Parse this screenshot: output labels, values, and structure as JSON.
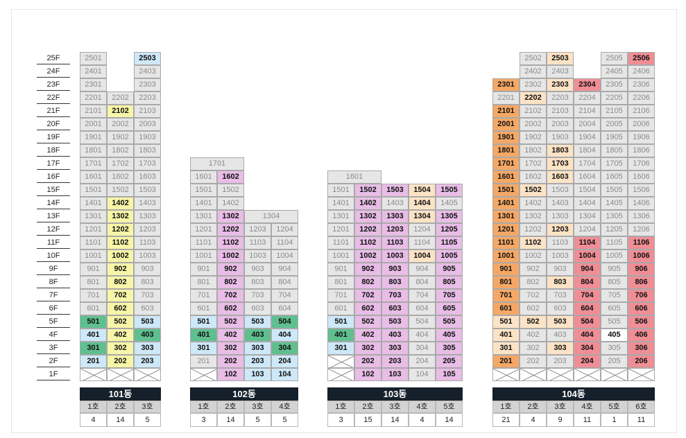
{
  "floors": [
    "25F",
    "24F",
    "23F",
    "22F",
    "21F",
    "20F",
    "19F",
    "18F",
    "17F",
    "16F",
    "15F",
    "14F",
    "13F",
    "12F",
    "11F",
    "10F",
    "9F",
    "8F",
    "7F",
    "6F",
    "5F",
    "4F",
    "3F",
    "2F",
    "1F"
  ],
  "colors": {
    "empty": "#e6e6e6",
    "yellow": "#f7f5a8",
    "blue": "#cde8f8",
    "green": "#5fbf8f",
    "pink": "#e8bde6",
    "peach": "#fde3c6",
    "orange": "#f5a866",
    "red": "#f08e96",
    "white": "#ffffff"
  },
  "buildings": [
    {
      "name": "101동",
      "hos": [
        "1호",
        "2호",
        "3호"
      ],
      "counts": [
        "4",
        "14",
        "5"
      ],
      "cols": [
        {
          "top": 25,
          "hl": {
            "2": "blue",
            "3": "green",
            "4": "blue",
            "5": "green"
          }
        },
        {
          "top": 22,
          "hl": {
            "2": "yellow",
            "3": "yellow",
            "4": "yellow",
            "5": "yellow",
            "6": "yellow",
            "7": "yellow",
            "8": "yellow",
            "9": "yellow",
            "10": "yellow",
            "11": "yellow",
            "12": "yellow",
            "13": "yellow",
            "14": "yellow",
            "21": "yellow"
          }
        },
        {
          "top": 25,
          "hl": {
            "2": "blue",
            "3": "blue",
            "4": "green",
            "5": "blue",
            "25": "blue"
          }
        }
      ]
    },
    {
      "name": "102동",
      "hos": [
        "1호",
        "2호",
        "3호",
        "4호"
      ],
      "counts": [
        "3",
        "14",
        "5",
        "5"
      ],
      "cols": [
        {
          "top": 16,
          "blank1": true,
          "hl": {
            "3": "blue",
            "4": "green",
            "5": "blue"
          }
        },
        {
          "top": 16,
          "hl": {
            "1": "pink",
            "2": "pink",
            "3": "pink",
            "4": "pink",
            "5": "pink",
            "6": "pink",
            "7": "pink",
            "8": "pink",
            "9": "pink",
            "10": "pink",
            "11": "pink",
            "12": "pink",
            "13": "pink",
            "16": "pink"
          }
        },
        {
          "top": 12,
          "hl": {
            "1": "blue",
            "2": "blue",
            "3": "blue",
            "4": "green",
            "5": "blue"
          }
        },
        {
          "top": 12,
          "hl": {
            "1": "blue",
            "2": "blue",
            "3": "green",
            "4": "blue",
            "5": "green"
          }
        }
      ],
      "extra": [
        {
          "label": "1701",
          "floor": 17,
          "col": 0,
          "span": 2
        },
        {
          "label": "1304",
          "floor": 13,
          "col": 2,
          "span": 2
        }
      ]
    },
    {
      "name": "103동",
      "hos": [
        "1호",
        "2호",
        "3호",
        "4호",
        "5호"
      ],
      "counts": [
        "3",
        "15",
        "14",
        "4",
        "14"
      ],
      "cols": [
        {
          "top": 15,
          "blank1": true,
          "blank2": true,
          "hl": {
            "3": "blue",
            "4": "green",
            "5": "blue"
          }
        },
        {
          "top": 15,
          "hl": {
            "1": "pink",
            "2": "pink",
            "3": "pink",
            "4": "pink",
            "5": "pink",
            "6": "pink",
            "7": "pink",
            "8": "pink",
            "9": "pink",
            "10": "pink",
            "11": "pink",
            "12": "pink",
            "13": "pink",
            "14": "pink",
            "15": "pink"
          }
        },
        {
          "top": 15,
          "hl": {
            "1": "pink",
            "2": "pink",
            "3": "pink",
            "4": "pink",
            "5": "pink",
            "6": "pink",
            "7": "pink",
            "8": "pink",
            "9": "pink",
            "10": "pink",
            "11": "pink",
            "12": "pink",
            "13": "pink",
            "15": "pink"
          }
        },
        {
          "top": 15,
          "hl": {
            "10": "peach",
            "13": "peach",
            "15": "peach",
            "14": "peach"
          }
        },
        {
          "top": 15,
          "hl": {
            "1": "pink",
            "2": "pink",
            "3": "pink",
            "4": "pink",
            "5": "pink",
            "6": "pink",
            "7": "pink",
            "8": "pink",
            "9": "pink",
            "10": "pink",
            "11": "pink",
            "12": "pink",
            "13": "pink",
            "15": "pink"
          }
        }
      ],
      "extra": [
        {
          "label": "1601",
          "floor": 16,
          "col": 0,
          "span": 2
        }
      ]
    },
    {
      "name": "104동",
      "hos": [
        "1호",
        "2호",
        "3호",
        "4호",
        "5호",
        "6호"
      ],
      "counts": [
        "21",
        "4",
        "9",
        "11",
        "1",
        "11"
      ],
      "cols": [
        {
          "top": 23,
          "blank1": true,
          "hl": {
            "2": "orange",
            "3": "peach",
            "4": "peach",
            "5": "peach",
            "6": "orange",
            "7": "orange",
            "8": "orange",
            "9": "orange",
            "10": "orange",
            "11": "orange",
            "12": "orange",
            "13": "orange",
            "14": "orange",
            "15": "orange",
            "16": "orange",
            "17": "orange",
            "18": "orange",
            "19": "orange",
            "20": "orange",
            "21": "orange",
            "23": "orange"
          }
        },
        {
          "top": 25,
          "blank1": true,
          "hl": {
            "5": "peach",
            "11": "peach",
            "15": "peach",
            "22": "peach"
          }
        },
        {
          "top": 25,
          "blank1": true,
          "hl": {
            "3": "peach",
            "5": "peach",
            "8": "peach",
            "12": "peach",
            "16": "peach",
            "17": "peach",
            "18": "peach",
            "23": "peach",
            "25": "peach"
          }
        },
        {
          "top": 23,
          "blank1": true,
          "hl": {
            "2": "red",
            "3": "red",
            "4": "red",
            "5": "red",
            "6": "red",
            "7": "red",
            "8": "red",
            "9": "red",
            "10": "red",
            "11": "red",
            "23": "red"
          }
        },
        {
          "top": 25,
          "blank1": true,
          "hl": {
            "4": "white"
          }
        },
        {
          "top": 25,
          "blank1": true,
          "hl": {
            "2": "red",
            "3": "red",
            "4": "red",
            "5": "red",
            "6": "red",
            "7": "red",
            "8": "red",
            "9": "red",
            "10": "red",
            "11": "red",
            "25": "red"
          }
        }
      ]
    }
  ]
}
